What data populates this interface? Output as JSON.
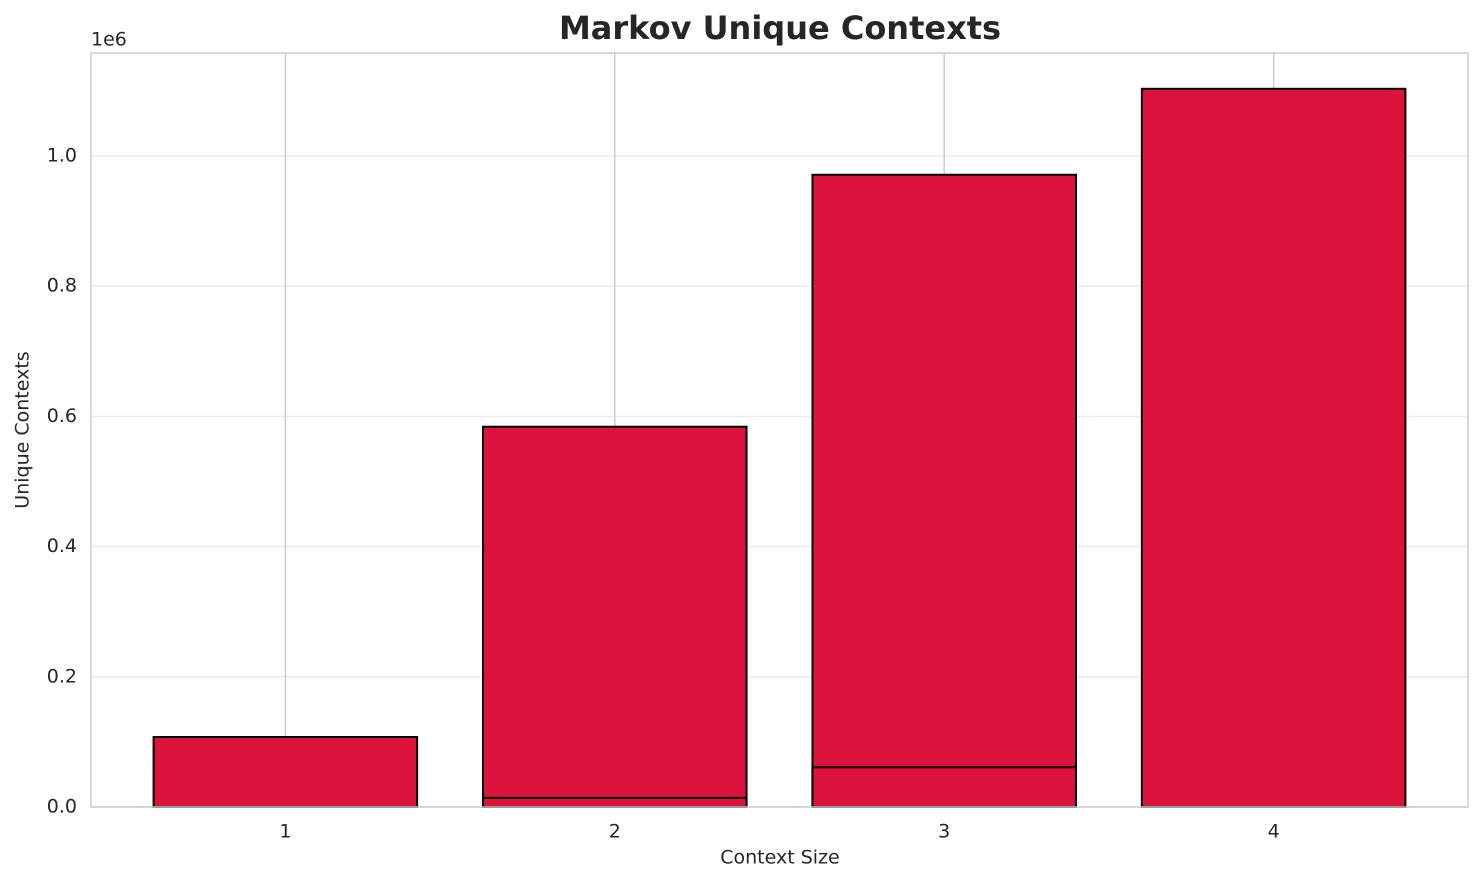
{
  "chart_data": {
    "type": "bar",
    "title": "Markov Unique Contexts",
    "x_label": "Context Size",
    "y_label": "Unique Contexts",
    "y_multiplier": "1e6",
    "x": [
      1,
      2,
      3,
      4
    ],
    "series": [
      {
        "color": "#dc143c",
        "values": [
          0.1075,
          0.584,
          0.971,
          1.103
        ]
      },
      {
        "color": "#dc143c",
        "values": [
          null,
          0.014,
          0.061,
          null
        ]
      }
    ],
    "xlim": [
      0.41,
      4.59
    ],
    "xticks": [
      1,
      2,
      3,
      4
    ],
    "ylim": [
      0,
      1.158
    ],
    "yticks": [
      {
        "value": 0,
        "label": "0.0"
      },
      0.2,
      0.4,
      0.6,
      0.8,
      {
        "value": 1,
        "label": "1.0"
      }
    ],
    "grid": true
  }
}
